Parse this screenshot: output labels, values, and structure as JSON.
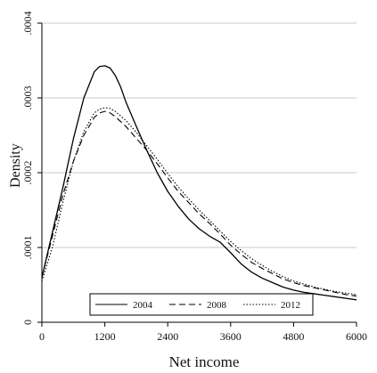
{
  "chart_data": {
    "type": "line",
    "xlabel": "Net income",
    "ylabel": "Density",
    "xlim": [
      0,
      6000
    ],
    "ylim": [
      0,
      0.0004
    ],
    "x_ticks": [
      0,
      1200,
      2400,
      3600,
      4800,
      6000
    ],
    "x_tick_labels": [
      "0",
      "1200",
      "2400",
      "3600",
      "4800",
      "6000"
    ],
    "y_ticks": [
      0,
      0.0001,
      0.0002,
      0.0003,
      0.0004
    ],
    "y_tick_labels": [
      "0",
      ".0001",
      ".0002",
      ".0003",
      ".0004"
    ],
    "grid": "horizontal",
    "legend_position": "bottom",
    "series": [
      {
        "name": "2004",
        "style": "solid",
        "x": [
          0,
          200,
          400,
          600,
          800,
          1000,
          1100,
          1200,
          1300,
          1400,
          1500,
          1600,
          1800,
          2000,
          2200,
          2400,
          2600,
          2800,
          3000,
          3200,
          3400,
          3600,
          3800,
          4000,
          4200,
          4400,
          4600,
          4800,
          5000,
          5200,
          5400,
          5600,
          5800,
          6000
        ],
        "values": [
          6e-05,
          0.00012,
          0.00018,
          0.000245,
          0.0003,
          0.000335,
          0.000342,
          0.000343,
          0.00034,
          0.00033,
          0.000315,
          0.000295,
          0.000262,
          0.00023,
          0.0002,
          0.000175,
          0.000155,
          0.000138,
          0.000125,
          0.000115,
          0.000107,
          9.3e-05,
          7.8e-05,
          6.7e-05,
          5.9e-05,
          5.3e-05,
          4.7e-05,
          4.3e-05,
          4e-05,
          3.8e-05,
          3.6e-05,
          3.4e-05,
          3.2e-05,
          3e-05
        ]
      },
      {
        "name": "2008",
        "style": "dashed",
        "x": [
          0,
          200,
          400,
          600,
          800,
          1000,
          1100,
          1200,
          1300,
          1400,
          1600,
          1800,
          2000,
          2200,
          2400,
          2600,
          2800,
          3000,
          3200,
          3400,
          3600,
          3800,
          4000,
          4200,
          4400,
          4600,
          4800,
          5000,
          5200,
          5400,
          5600,
          5800,
          6000
        ],
        "values": [
          6e-05,
          0.000115,
          0.00017,
          0.000215,
          0.00025,
          0.000274,
          0.00028,
          0.000282,
          0.00028,
          0.000275,
          0.000262,
          0.000246,
          0.00023,
          0.000212,
          0.000193,
          0.000175,
          0.00016,
          0.000145,
          0.000132,
          0.000118,
          0.000103,
          9.1e-05,
          8e-05,
          7.2e-05,
          6.5e-05,
          5.8e-05,
          5.3e-05,
          4.9e-05,
          4.6e-05,
          4.3e-05,
          4e-05,
          3.7e-05,
          3.5e-05
        ]
      },
      {
        "name": "2012",
        "style": "dotted",
        "x": [
          0,
          200,
          400,
          600,
          800,
          1000,
          1100,
          1200,
          1300,
          1400,
          1600,
          1800,
          2000,
          2200,
          2400,
          2600,
          2800,
          3000,
          3200,
          3400,
          3600,
          3800,
          4000,
          4200,
          4400,
          4600,
          4800,
          5000,
          5200,
          5400,
          5600,
          5800,
          6000
        ],
        "values": [
          5.5e-05,
          0.0001,
          0.00016,
          0.000215,
          0.000255,
          0.00028,
          0.000285,
          0.000287,
          0.000286,
          0.000282,
          0.00027,
          0.000254,
          0.000236,
          0.000218,
          0.000199,
          0.000181,
          0.000165,
          0.00015,
          0.000136,
          0.000122,
          0.000108,
          9.6e-05,
          8.5e-05,
          7.6e-05,
          6.8e-05,
          6.1e-05,
          5.5e-05,
          5.1e-05,
          4.7e-05,
          4.4e-05,
          4.1e-05,
          3.9e-05,
          3.7e-05
        ]
      }
    ]
  }
}
